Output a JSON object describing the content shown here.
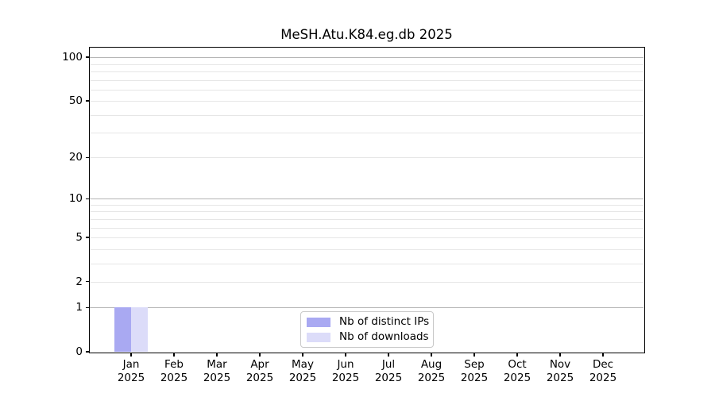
{
  "chart_data": {
    "type": "bar",
    "title": "MeSH.Atu.K84.eg.db 2025",
    "categories": [
      "Jan 2025",
      "Feb 2025",
      "Mar 2025",
      "Apr 2025",
      "May 2025",
      "Jun 2025",
      "Jul 2025",
      "Aug 2025",
      "Sep 2025",
      "Oct 2025",
      "Nov 2025",
      "Dec 2025"
    ],
    "months": [
      "Jan",
      "Feb",
      "Mar",
      "Apr",
      "May",
      "Jun",
      "Jul",
      "Aug",
      "Sep",
      "Oct",
      "Nov",
      "Dec"
    ],
    "year": "2025",
    "series": [
      {
        "name": "Nb of distinct IPs",
        "color": "#a9a9f2",
        "values": [
          1,
          0,
          0,
          0,
          0,
          0,
          0,
          0,
          0,
          0,
          0,
          0
        ]
      },
      {
        "name": "Nb of downloads",
        "color": "#dcdcf9",
        "values": [
          1,
          0,
          0,
          0,
          0,
          0,
          0,
          0,
          0,
          0,
          0,
          0
        ]
      }
    ],
    "xlabel": "",
    "ylabel": "",
    "y_scale": "log10(value+1)",
    "y_ticks": [
      0,
      1,
      2,
      5,
      10,
      20,
      50,
      100
    ],
    "y_major_gridlines": [
      1,
      10,
      100
    ],
    "y_minor_gridlines": [
      2,
      3,
      4,
      5,
      6,
      7,
      8,
      9,
      20,
      30,
      40,
      50,
      60,
      70,
      80,
      90
    ],
    "ylim": [
      0,
      116
    ],
    "grid": true,
    "legend_position": "lower center"
  },
  "colors": {
    "bar_distinct_ips": "#a9a9f2",
    "bar_downloads": "#dcdcf9",
    "major_grid": "#b5b5b5",
    "minor_grid": "#e6e6e6",
    "axis": "#000000",
    "legend_border": "#c9c9c9"
  }
}
